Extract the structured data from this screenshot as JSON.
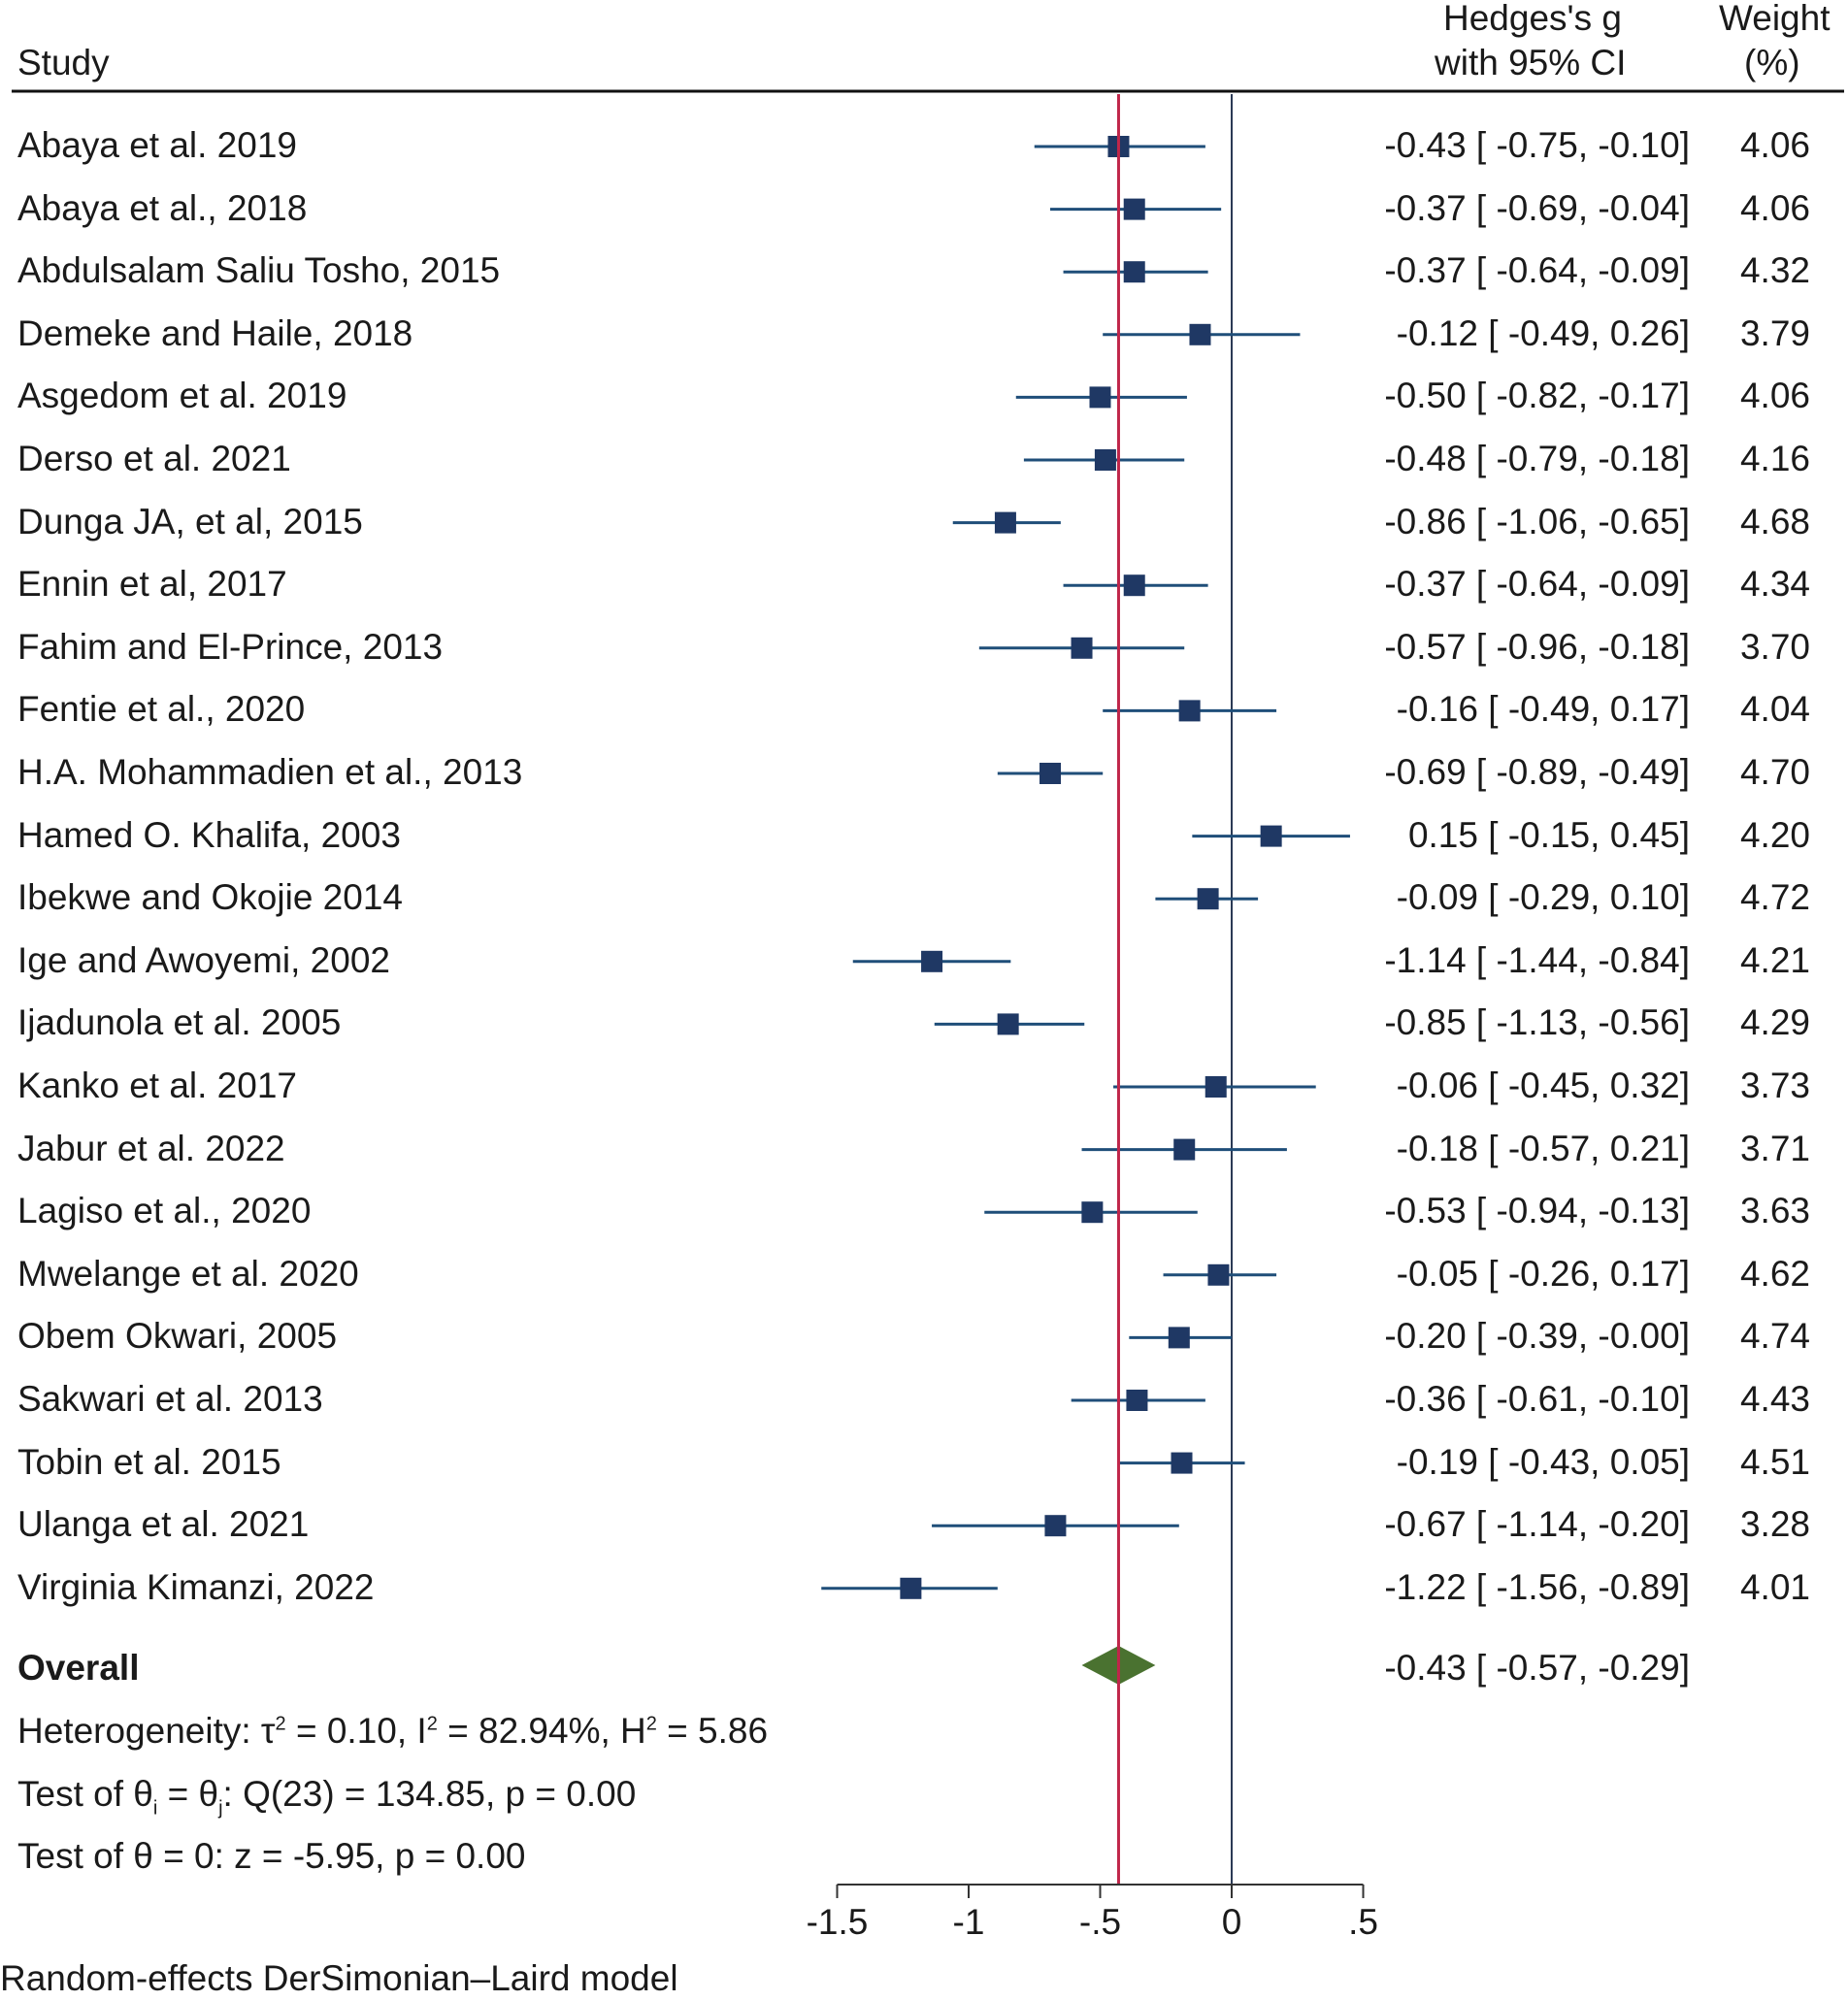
{
  "header": {
    "study": "Study",
    "effect_line1": "Hedges's g",
    "effect_line2": "with 95% CI",
    "weight_line1": "Weight",
    "weight_line2": "(%)"
  },
  "chart_data": {
    "type": "forest",
    "xlabel": "",
    "xlim": [
      -1.5,
      0.5
    ],
    "xticks": [
      -1.5,
      -1,
      -0.5,
      0,
      0.5
    ],
    "xtick_labels": [
      "-1.5",
      "-1",
      "-.5",
      "0",
      ".5"
    ],
    "null_line": 0,
    "studies": [
      {
        "name": "Abaya et al. 2019",
        "g": -0.43,
        "lo": -0.75,
        "hi": -0.1,
        "ci_text": "-0.43 [ -0.75,  -0.10]",
        "weight": "4.06"
      },
      {
        "name": "Abaya et al., 2018",
        "g": -0.37,
        "lo": -0.69,
        "hi": -0.04,
        "ci_text": "-0.37 [ -0.69,  -0.04]",
        "weight": "4.06"
      },
      {
        "name": "Abdulsalam Saliu Tosho, 2015",
        "g": -0.37,
        "lo": -0.64,
        "hi": -0.09,
        "ci_text": "-0.37 [ -0.64,  -0.09]",
        "weight": "4.32"
      },
      {
        "name": "Demeke and Haile, 2018",
        "g": -0.12,
        "lo": -0.49,
        "hi": 0.26,
        "ci_text": "-0.12 [ -0.49,   0.26]",
        "weight": "3.79"
      },
      {
        "name": "Asgedom et al. 2019",
        "g": -0.5,
        "lo": -0.82,
        "hi": -0.17,
        "ci_text": "-0.50 [ -0.82,  -0.17]",
        "weight": "4.06"
      },
      {
        "name": "Derso et al. 2021",
        "g": -0.48,
        "lo": -0.79,
        "hi": -0.18,
        "ci_text": "-0.48 [ -0.79,  -0.18]",
        "weight": "4.16"
      },
      {
        "name": "Dunga JA, et al, 2015",
        "g": -0.86,
        "lo": -1.06,
        "hi": -0.65,
        "ci_text": "-0.86 [ -1.06,  -0.65]",
        "weight": "4.68"
      },
      {
        "name": "Ennin et al, 2017",
        "g": -0.37,
        "lo": -0.64,
        "hi": -0.09,
        "ci_text": "-0.37 [ -0.64,  -0.09]",
        "weight": "4.34"
      },
      {
        "name": "Fahim and El-Prince, 2013",
        "g": -0.57,
        "lo": -0.96,
        "hi": -0.18,
        "ci_text": "-0.57 [ -0.96,  -0.18]",
        "weight": "3.70"
      },
      {
        "name": "Fentie et al., 2020",
        "g": -0.16,
        "lo": -0.49,
        "hi": 0.17,
        "ci_text": "-0.16 [ -0.49,   0.17]",
        "weight": "4.04"
      },
      {
        "name": "H.A. Mohammadien et al., 2013",
        "g": -0.69,
        "lo": -0.89,
        "hi": -0.49,
        "ci_text": "-0.69 [ -0.89,  -0.49]",
        "weight": "4.70"
      },
      {
        "name": "Hamed O. Khalifa, 2003",
        "g": 0.15,
        "lo": -0.15,
        "hi": 0.45,
        "ci_text": "0.15 [ -0.15,   0.45]",
        "weight": "4.20"
      },
      {
        "name": "Ibekwe and Okojie 2014",
        "g": -0.09,
        "lo": -0.29,
        "hi": 0.1,
        "ci_text": "-0.09 [ -0.29,   0.10]",
        "weight": "4.72"
      },
      {
        "name": "Ige and Awoyemi, 2002",
        "g": -1.14,
        "lo": -1.44,
        "hi": -0.84,
        "ci_text": "-1.14 [ -1.44,  -0.84]",
        "weight": "4.21"
      },
      {
        "name": "Ijadunola et al. 2005",
        "g": -0.85,
        "lo": -1.13,
        "hi": -0.56,
        "ci_text": "-0.85 [ -1.13,  -0.56]",
        "weight": "4.29"
      },
      {
        "name": "Kanko et al. 2017",
        "g": -0.06,
        "lo": -0.45,
        "hi": 0.32,
        "ci_text": "-0.06 [ -0.45,   0.32]",
        "weight": "3.73"
      },
      {
        "name": "Jabur et al. 2022",
        "g": -0.18,
        "lo": -0.57,
        "hi": 0.21,
        "ci_text": "-0.18 [ -0.57,   0.21]",
        "weight": "3.71"
      },
      {
        "name": "Lagiso et al., 2020",
        "g": -0.53,
        "lo": -0.94,
        "hi": -0.13,
        "ci_text": "-0.53 [ -0.94,  -0.13]",
        "weight": "3.63"
      },
      {
        "name": "Mwelange et al. 2020",
        "g": -0.05,
        "lo": -0.26,
        "hi": 0.17,
        "ci_text": "-0.05 [ -0.26,   0.17]",
        "weight": "4.62"
      },
      {
        "name": "Obem Okwari, 2005",
        "g": -0.2,
        "lo": -0.39,
        "hi": -0.0,
        "ci_text": "-0.20 [ -0.39,  -0.00]",
        "weight": "4.74"
      },
      {
        "name": "Sakwari et al. 2013",
        "g": -0.36,
        "lo": -0.61,
        "hi": -0.1,
        "ci_text": "-0.36 [ -0.61,  -0.10]",
        "weight": "4.43"
      },
      {
        "name": "Tobin et al. 2015",
        "g": -0.19,
        "lo": -0.43,
        "hi": 0.05,
        "ci_text": "-0.19 [ -0.43,   0.05]",
        "weight": "4.51"
      },
      {
        "name": "Ulanga et al. 2021",
        "g": -0.67,
        "lo": -1.14,
        "hi": -0.2,
        "ci_text": "-0.67 [ -1.14,  -0.20]",
        "weight": "3.28"
      },
      {
        "name": "Virginia Kimanzi, 2022",
        "g": -1.22,
        "lo": -1.56,
        "hi": -0.89,
        "ci_text": "-1.22 [ -1.56,  -0.89]",
        "weight": "4.01"
      }
    ],
    "overall": {
      "label": "Overall",
      "g": -0.43,
      "lo": -0.57,
      "hi": -0.29,
      "ci_text": "-0.43 [ -0.57,  -0.29]"
    },
    "colors": {
      "square": "#1f3864",
      "ci_line": "#1f4e79",
      "diamond": "#4a7230",
      "overall_line": "#c0264a",
      "zero_line": "#2b3a55",
      "axis": "#333333"
    }
  },
  "stats": {
    "heterogeneity": {
      "prefix": "Heterogeneity: τ",
      "sup1": "2",
      "mid1": " = 0.10, I",
      "sup2": "2",
      "mid2": " = 82.94%, H",
      "sup3": "2",
      "end": " = 5.86"
    },
    "test_theta": {
      "prefix": "Test of θ",
      "sub1": "i",
      "mid": " = θ",
      "sub2": "j",
      "end": ": Q(23) = 134.85, p = 0.00"
    },
    "test_zero": "Test of θ = 0: z = -5.95, p = 0.00"
  },
  "footer": "Random-effects DerSimonian–Laird model"
}
